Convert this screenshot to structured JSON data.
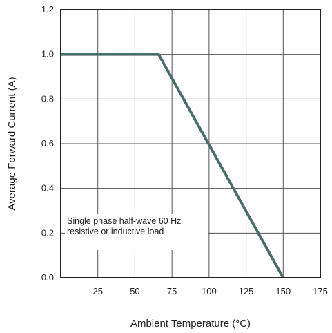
{
  "chart_data": {
    "type": "line",
    "title": "",
    "xlabel": "Ambient Temperature (°C)",
    "ylabel": "Average Forward Current (A)",
    "xlim": [
      0,
      175
    ],
    "ylim": [
      0,
      1.2
    ],
    "x_ticks": [
      "25",
      "50",
      "75",
      "100",
      "125",
      "150",
      "175"
    ],
    "y_ticks": [
      "0.0",
      "0.2",
      "0.4",
      "0.6",
      "0.8",
      "1.0",
      "1.2"
    ],
    "grid": true,
    "series": [
      {
        "points": [
          [
            0,
            1.0
          ],
          [
            66,
            1.0
          ],
          [
            150,
            0.0
          ]
        ],
        "color": "#4a6e6e"
      }
    ],
    "annotation_lines": [
      "Single phase half-wave 60 Hz",
      "resistive or inductive load"
    ]
  }
}
